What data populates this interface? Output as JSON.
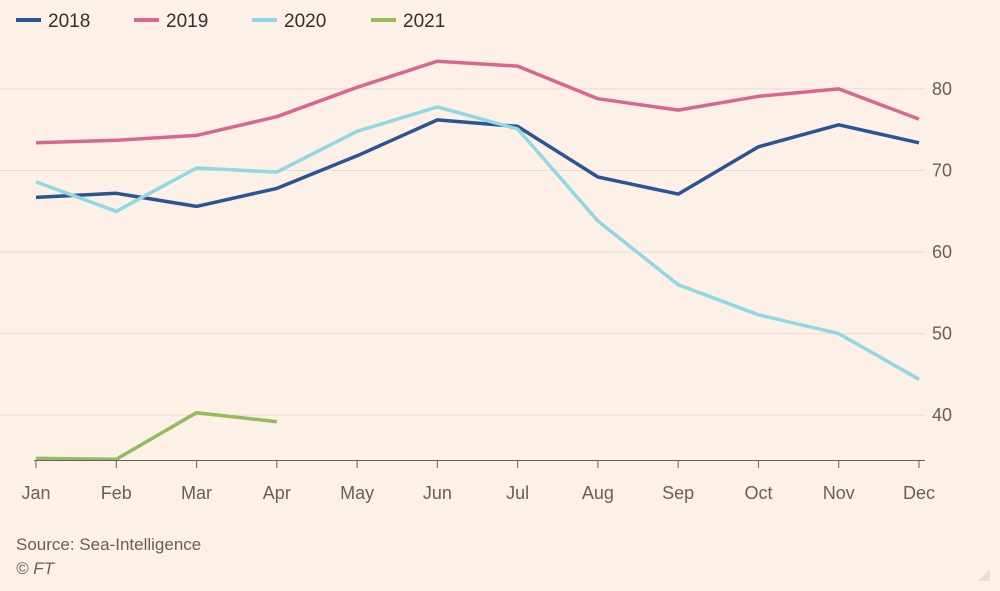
{
  "chart_data": {
    "type": "line",
    "categories": [
      "Jan",
      "Feb",
      "Mar",
      "Apr",
      "May",
      "Jun",
      "Jul",
      "Aug",
      "Sep",
      "Oct",
      "Nov",
      "Dec"
    ],
    "ylim": [
      34.5,
      86
    ],
    "yticks": [
      40,
      50,
      60,
      70,
      80
    ],
    "grid": true,
    "legend_position": "top-left",
    "title": "",
    "xlabel": "",
    "ylabel": "",
    "series": [
      {
        "name": "2018",
        "color": "#2a5594",
        "values": [
          66.7,
          67.2,
          65.6,
          67.8,
          71.8,
          76.2,
          75.4,
          69.2,
          67.1,
          72.9,
          75.6,
          73.4
        ]
      },
      {
        "name": "2019",
        "color": "#d9668f",
        "values": [
          73.4,
          73.7,
          74.3,
          76.6,
          80.2,
          83.4,
          82.8,
          78.8,
          77.4,
          79.1,
          80.0,
          76.3
        ]
      },
      {
        "name": "2020",
        "color": "#8fd8e4",
        "values": [
          68.6,
          65.0,
          70.3,
          69.8,
          74.8,
          77.8,
          75.1,
          63.8,
          56.0,
          52.3,
          50.0,
          44.4
        ]
      },
      {
        "name": "2021",
        "color": "#96bb5f",
        "values": [
          34.7,
          34.6,
          40.3,
          39.2,
          null,
          null,
          null,
          null,
          null,
          null,
          null,
          null
        ]
      }
    ]
  },
  "footer": {
    "source": "Source: Sea-Intelligence",
    "copyright": "© FT"
  }
}
